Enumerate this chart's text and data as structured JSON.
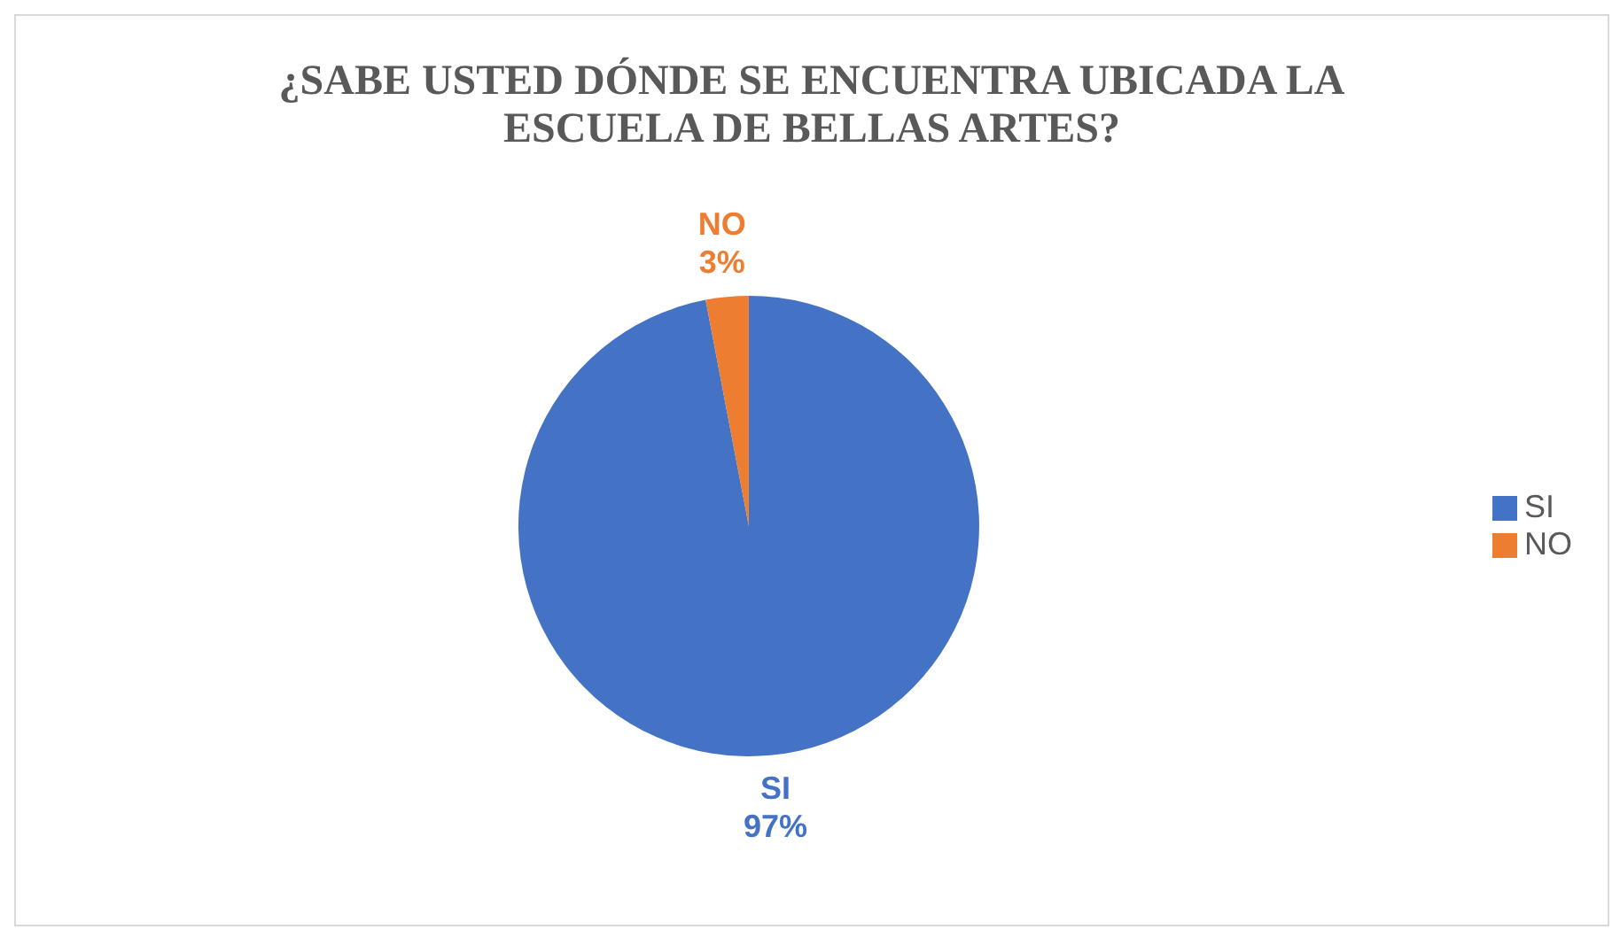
{
  "chart_data": {
    "type": "pie",
    "title": "¿SABE USTED DÓNDE SE ENCUENTRA UBICADA LA ESCUELA DE BELLAS ARTES?",
    "categories": [
      "SI",
      "NO"
    ],
    "values": [
      97,
      3
    ],
    "colors": [
      "#4472c4",
      "#ed7d31"
    ],
    "value_labels": [
      "97%",
      "3%"
    ],
    "legend": "right"
  }
}
